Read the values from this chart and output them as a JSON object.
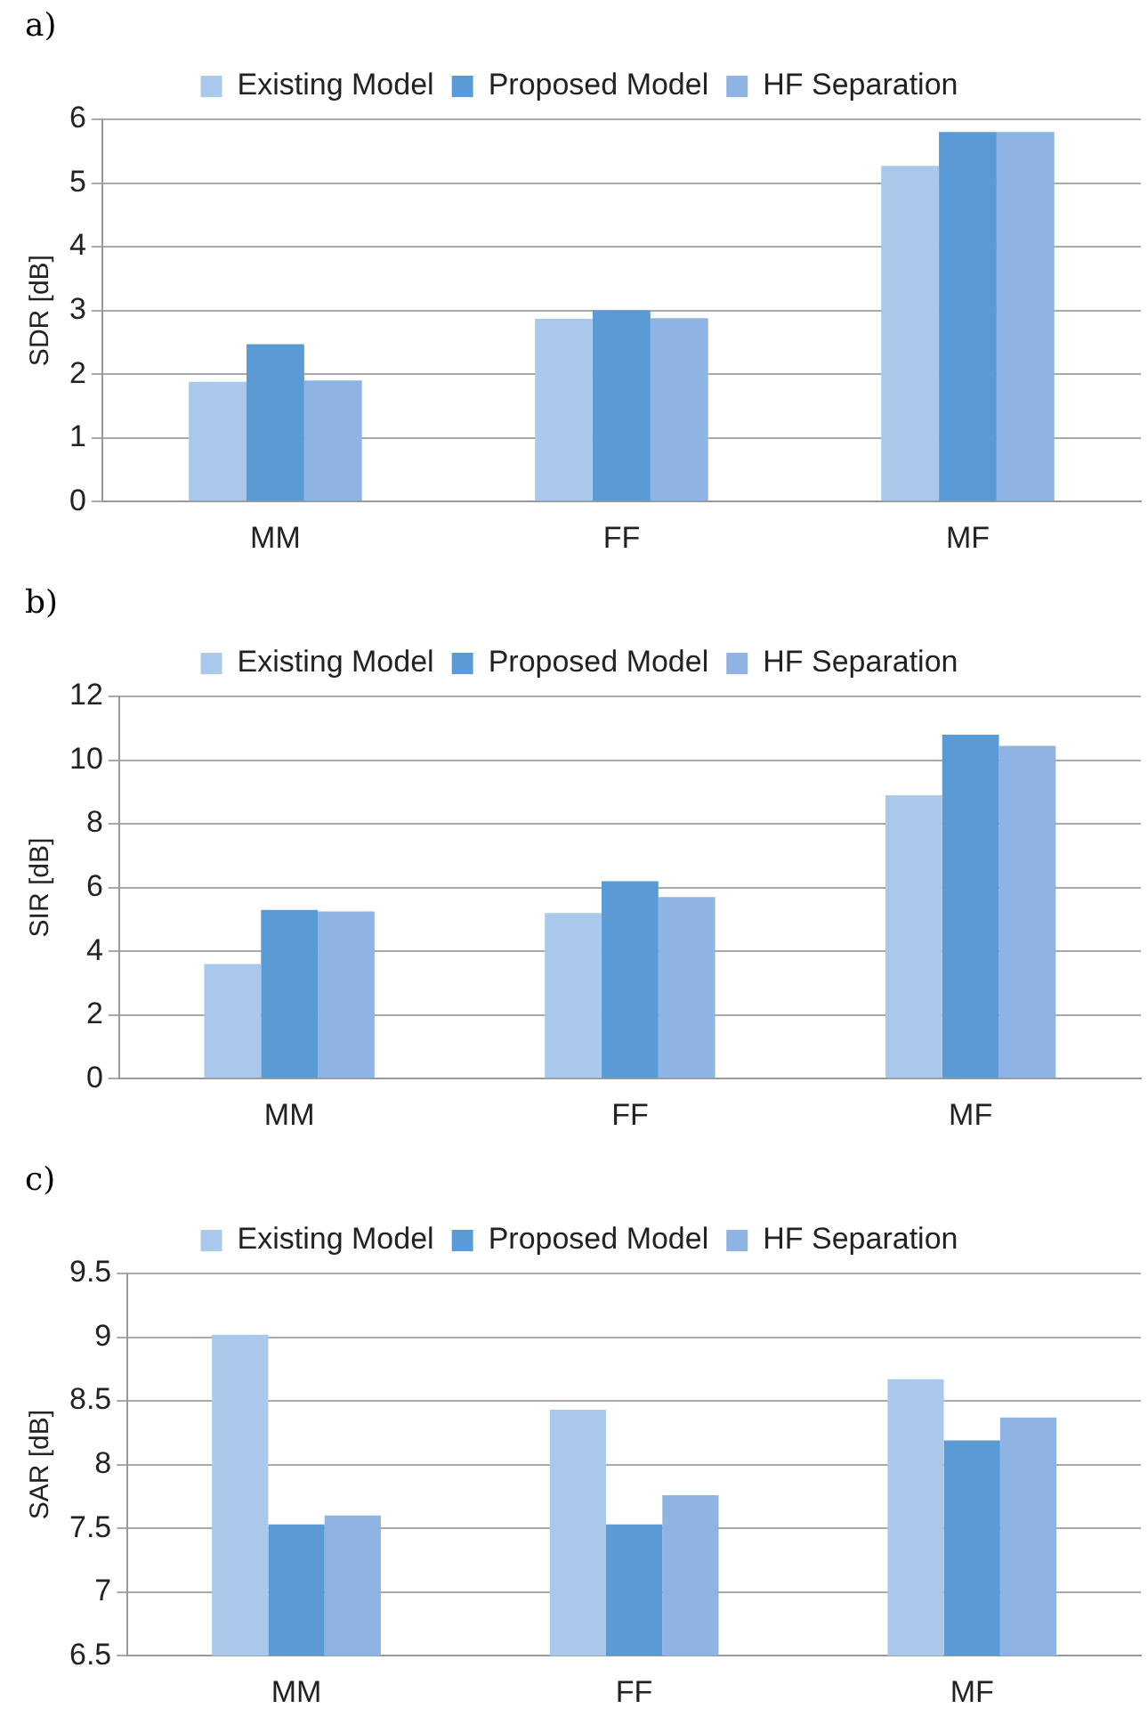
{
  "chart_data": [
    {
      "type": "bar",
      "title": "a)",
      "ylabel": "SDR [dB]",
      "categories": [
        "MM",
        "FF",
        "MF"
      ],
      "series": [
        {
          "name": "Existing Model",
          "color": "#a9c8ec",
          "values": [
            1.88,
            2.87,
            5.27
          ]
        },
        {
          "name": "Proposed Model",
          "color": "#5b9bd5",
          "values": [
            2.47,
            3.0,
            5.8
          ]
        },
        {
          "name": "HF Separation",
          "color": "#8db4e2",
          "values": [
            1.9,
            2.88,
            5.8
          ]
        }
      ],
      "ylim": [
        0,
        6
      ],
      "yticks": [
        0,
        1,
        2,
        3,
        4,
        5,
        6
      ],
      "grid": "y",
      "legend": "top"
    },
    {
      "type": "bar",
      "title": "b)",
      "ylabel": "SIR [dB]",
      "categories": [
        "MM",
        "FF",
        "MF"
      ],
      "series": [
        {
          "name": "Existing Model",
          "color": "#a9c8ec",
          "values": [
            3.6,
            5.2,
            8.9
          ]
        },
        {
          "name": "Proposed Model",
          "color": "#5b9bd5",
          "values": [
            5.3,
            6.2,
            10.8
          ]
        },
        {
          "name": "HF Separation",
          "color": "#8db4e2",
          "values": [
            5.25,
            5.7,
            10.45
          ]
        }
      ],
      "ylim": [
        0,
        12
      ],
      "yticks": [
        0,
        2,
        4,
        6,
        8,
        10,
        12
      ],
      "grid": "y",
      "legend": "top"
    },
    {
      "type": "bar",
      "title": "c)",
      "ylabel": "SAR [dB]",
      "categories": [
        "MM",
        "FF",
        "MF"
      ],
      "series": [
        {
          "name": "Existing Model",
          "color": "#a9c8ec",
          "values": [
            9.02,
            8.43,
            8.67
          ]
        },
        {
          "name": "Proposed Model",
          "color": "#5b9bd5",
          "values": [
            7.53,
            7.53,
            8.19
          ]
        },
        {
          "name": "HF Separation",
          "color": "#8db4e2",
          "values": [
            7.6,
            7.76,
            8.37
          ]
        }
      ],
      "ylim": [
        6.5,
        9.5
      ],
      "yticks": [
        6.5,
        7,
        7.5,
        8,
        8.5,
        9,
        9.5
      ],
      "grid": "y",
      "legend": "top"
    }
  ]
}
